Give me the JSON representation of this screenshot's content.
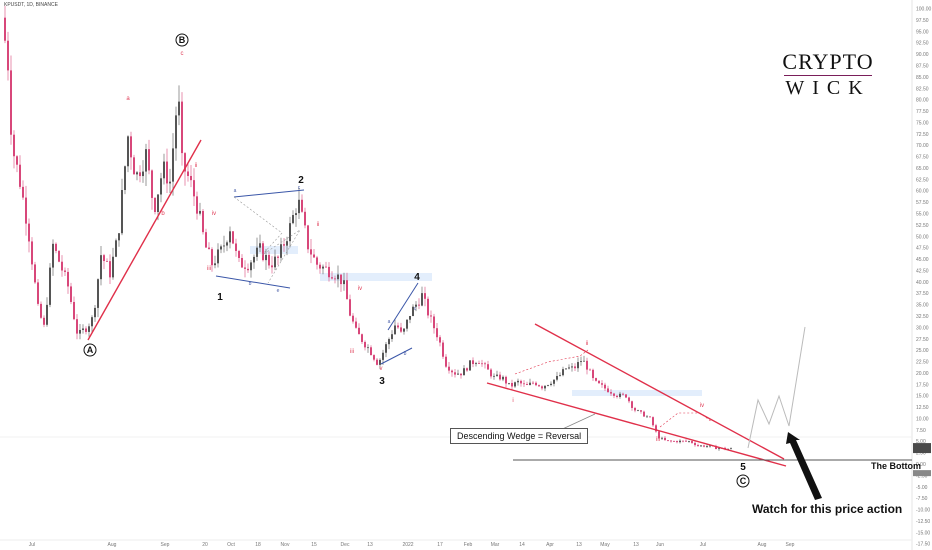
{
  "symbol": "KPUSDT, 1D, BINANCE",
  "logo": {
    "line1": "CRYPTO",
    "line2": "WICK"
  },
  "annotations": {
    "wedge_callout": "Descending Wedge = Reversal",
    "bottom_label": "The Bottom",
    "watch_label": "Watch for this price action"
  },
  "colors": {
    "up": "#555555",
    "down": "#d8477a",
    "trend": "#e0304a",
    "blue": "#3a56a8",
    "projection": "#bbbbbb"
  },
  "chart_data": {
    "type": "candlestick",
    "x_axis_labels": [
      "Jul",
      "Aug",
      "Sep",
      "20",
      "Oct",
      "18",
      "Nov",
      "15",
      "Dec",
      "13",
      "2022",
      "17",
      "Feb",
      "Mar",
      "14",
      "Apr",
      "13",
      "May",
      "13",
      "Jun",
      "Jul",
      "Aug",
      "Sep"
    ],
    "y_axis_labels": [
      "100.00",
      "97.50",
      "95.00",
      "92.50",
      "90.00",
      "87.50",
      "85.00",
      "82.50",
      "80.00",
      "77.50",
      "75.00",
      "72.50",
      "70.00",
      "67.50",
      "65.00",
      "62.50",
      "60.00",
      "57.50",
      "55.00",
      "52.50",
      "50.00",
      "47.50",
      "45.00",
      "42.50",
      "40.00",
      "37.50",
      "35.00",
      "32.50",
      "30.00",
      "27.50",
      "25.00",
      "22.50",
      "20.00",
      "17.50",
      "15.00",
      "12.50",
      "10.00",
      "7.50",
      "5.00",
      "2.50",
      "0.00",
      "-2.50",
      "-5.00",
      "-7.50",
      "-10.00",
      "-12.50",
      "-15.00",
      "-17.50"
    ],
    "ylim": [
      -18,
      101
    ],
    "wave_labels_big": [
      "A",
      "B",
      "1",
      "2",
      "3",
      "4",
      "5",
      "C"
    ],
    "wave_labels_small": [
      "a",
      "b",
      "c",
      "d",
      "e",
      "i",
      "ii",
      "iii",
      "iv",
      "v"
    ],
    "series_description": "Daily candles from ~$98 in June declining to ~$3 by late June of next year"
  }
}
